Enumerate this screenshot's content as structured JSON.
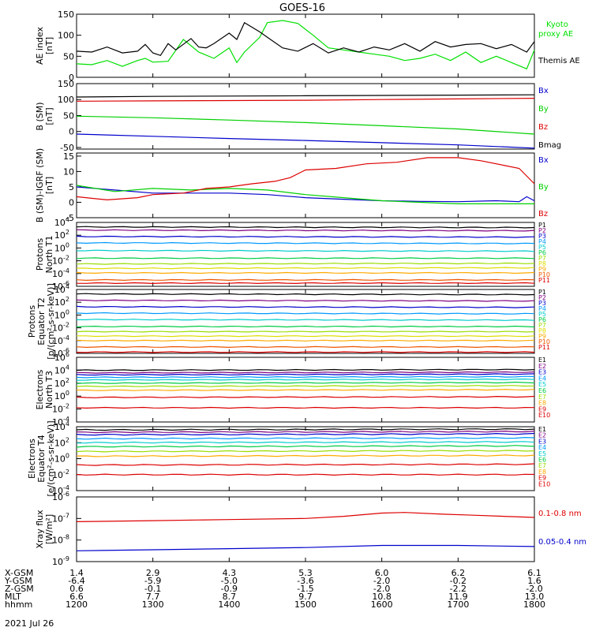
{
  "title": "GOES-16",
  "footer": {
    "row_labels": [
      "X-GSM",
      "Y-GSM",
      "Z-GSM",
      "MLT",
      "hhmm"
    ],
    "date": "2021 Jul 26",
    "columns": [
      [
        "1.4",
        "-6.4",
        "0.6",
        "6.6",
        "1200"
      ],
      [
        "2.9",
        "-5.9",
        "-0.1",
        "7.7",
        "1300"
      ],
      [
        "4.3",
        "-5.0",
        "-0.9",
        "8.7",
        "1400"
      ],
      [
        "5.3",
        "-3.6",
        "-1.5",
        "9.7",
        "1500"
      ],
      [
        "6.0",
        "-2.0",
        "-2.0",
        "10.8",
        "1600"
      ],
      [
        "6.2",
        "-0.2",
        "-2.2",
        "11.9",
        "1700"
      ],
      [
        "6.1",
        "1.6",
        "-2.0",
        "13.0",
        "1800"
      ]
    ]
  },
  "chart_data": [
    {
      "type": "line",
      "panel": "ae",
      "ylabel": [
        "AE index",
        "[nT]"
      ],
      "ylim": [
        0,
        150
      ],
      "yticks": [
        "0",
        "50",
        "100",
        "150"
      ],
      "series": [
        {
          "name": "Kyoto proxy AE",
          "color": "#00e000",
          "x": [
            12.0,
            12.2,
            12.4,
            12.6,
            12.8,
            12.9,
            13.0,
            13.2,
            13.4,
            13.6,
            13.8,
            14.0,
            14.1,
            14.2,
            14.4,
            14.5,
            14.7,
            14.9,
            15.1,
            15.3,
            15.5,
            15.7,
            15.9,
            16.1,
            16.3,
            16.5,
            16.7,
            16.9,
            17.1,
            17.3,
            17.5,
            17.7,
            17.9,
            18.0
          ],
          "y": [
            32,
            30,
            40,
            26,
            40,
            45,
            36,
            38,
            90,
            60,
            45,
            70,
            35,
            60,
            95,
            130,
            135,
            128,
            100,
            70,
            65,
            60,
            55,
            50,
            40,
            45,
            55,
            40,
            60,
            35,
            50,
            35,
            20,
            65
          ]
        },
        {
          "name": "Themis AE",
          "color": "#000000",
          "x": [
            12.0,
            12.2,
            12.4,
            12.6,
            12.8,
            12.9,
            13.0,
            13.1,
            13.2,
            13.3,
            13.5,
            13.6,
            13.7,
            13.8,
            14.0,
            14.1,
            14.2,
            14.4,
            14.5,
            14.7,
            14.9,
            15.1,
            15.3,
            15.5,
            15.7,
            15.9,
            16.1,
            16.3,
            16.5,
            16.7,
            16.9,
            17.1,
            17.3,
            17.5,
            17.7,
            17.9,
            18.0
          ],
          "y": [
            62,
            60,
            72,
            58,
            62,
            78,
            58,
            52,
            80,
            65,
            92,
            72,
            70,
            80,
            105,
            90,
            130,
            108,
            95,
            70,
            62,
            80,
            58,
            70,
            60,
            72,
            65,
            80,
            62,
            85,
            72,
            78,
            80,
            68,
            78,
            60,
            85
          ]
        }
      ]
    },
    {
      "type": "line",
      "panel": "b_sm",
      "ylabel": [
        "B (SM)",
        "[nT]"
      ],
      "ylim": [
        -55,
        150
      ],
      "yticks": [
        "-50",
        "0",
        "50",
        "100",
        "150"
      ],
      "series": [
        {
          "name": "Bx",
          "color": "#0000cc",
          "x": [
            12,
            13,
            14,
            15,
            16,
            17,
            18
          ],
          "y": [
            -8,
            -15,
            -22,
            -28,
            -35,
            -42,
            -52
          ]
        },
        {
          "name": "By",
          "color": "#00d000",
          "x": [
            12,
            13,
            14,
            15,
            16,
            17,
            18
          ],
          "y": [
            48,
            43,
            36,
            28,
            18,
            8,
            -8
          ]
        },
        {
          "name": "Bz",
          "color": "#dd0000",
          "x": [
            12,
            13,
            14,
            15,
            16,
            17,
            18
          ],
          "y": [
            95,
            96,
            97,
            98,
            100,
            102,
            104
          ]
        },
        {
          "name": "Bmag",
          "color": "#000000",
          "x": [
            12,
            13,
            14,
            15,
            16,
            17,
            18
          ],
          "y": [
            108,
            110,
            111,
            112,
            113,
            114,
            115
          ]
        }
      ]
    },
    {
      "type": "line",
      "panel": "b_minus_igrf",
      "ylabel": [
        "B (SM)-IGRF (SM)",
        "[nT]"
      ],
      "ylim": [
        -5,
        16
      ],
      "yticks": [
        "-5",
        "0",
        "5",
        "10",
        "15"
      ],
      "series": [
        {
          "name": "Bx",
          "color": "#0000cc",
          "x": [
            12.0,
            12.5,
            13.0,
            13.5,
            14.0,
            14.5,
            15.0,
            15.5,
            16.0,
            16.5,
            17.0,
            17.5,
            17.8,
            17.9,
            18.0
          ],
          "y": [
            5,
            4,
            3,
            3,
            3,
            2.5,
            1.5,
            1,
            0.5,
            0.3,
            0.2,
            0.5,
            0.2,
            1.8,
            0.5
          ]
        },
        {
          "name": "By",
          "color": "#00d000",
          "x": [
            12.0,
            12.5,
            13.0,
            13.5,
            14.0,
            14.5,
            15.0,
            15.5,
            16.0,
            16.5,
            17.0,
            17.5,
            18.0
          ],
          "y": [
            5.5,
            3.5,
            4.5,
            4,
            4.5,
            4,
            2.5,
            1.5,
            0.5,
            0,
            -0.5,
            -0.5,
            -0.5
          ]
        },
        {
          "name": "Bz",
          "color": "#dd0000",
          "x": [
            12.0,
            12.4,
            12.8,
            13.0,
            13.4,
            13.7,
            14.0,
            14.3,
            14.6,
            14.8,
            15.0,
            15.4,
            15.8,
            16.2,
            16.6,
            17.0,
            17.3,
            17.6,
            17.8,
            18.0
          ],
          "y": [
            1.8,
            0.8,
            1.5,
            2.5,
            3,
            4.5,
            5,
            6,
            6.8,
            8,
            10.5,
            11,
            12.5,
            13,
            14.5,
            14.5,
            13.5,
            12,
            11,
            6
          ]
        }
      ]
    },
    {
      "type": "line",
      "panel": "protons_t1",
      "log_scale": true,
      "ylabel": [
        "Protons",
        "North T1"
      ],
      "ylim": [
        -6,
        4
      ],
      "ytick_exponents": [
        4,
        2,
        0,
        -2,
        -4,
        -6
      ],
      "series": [
        {
          "name": "P1",
          "color": "#000000",
          "levels": [
            3.3,
            3.2
          ]
        },
        {
          "name": "P2",
          "color": "#800080",
          "levels": [
            2.8,
            2.7
          ]
        },
        {
          "name": "P3",
          "color": "#0000cc",
          "levels": [
            1.8,
            1.7
          ]
        },
        {
          "name": "P4",
          "color": "#0099ff",
          "levels": [
            0.8,
            0.7
          ]
        },
        {
          "name": "P5",
          "color": "#00cccc",
          "levels": [
            -0.4,
            -0.5
          ]
        },
        {
          "name": "P6",
          "color": "#00cc44",
          "levels": [
            -1.6,
            -1.6
          ]
        },
        {
          "name": "P7",
          "color": "#99dd00",
          "levels": [
            -2.5,
            -2.4
          ]
        },
        {
          "name": "P8",
          "color": "#dddd00",
          "levels": [
            -3.2,
            -3.1
          ]
        },
        {
          "name": "P9",
          "color": "#ffaa00",
          "levels": [
            -3.9,
            -3.9
          ]
        },
        {
          "name": "P10",
          "color": "#ee5500",
          "levels": [
            -5.0,
            -5.0
          ]
        },
        {
          "name": "P11",
          "color": "#dd0000",
          "levels": [
            -5.5,
            -5.5
          ]
        }
      ]
    },
    {
      "type": "line",
      "panel": "protons_t2",
      "log_scale": true,
      "ylabel": [
        "Protons",
        "Equator T2",
        "[p/(cm²-s-sr-keV)]"
      ],
      "ylim": [
        -6,
        4
      ],
      "ytick_exponents": [
        4,
        2,
        0,
        -2,
        -4,
        -6
      ],
      "series": [
        {
          "name": "P1",
          "color": "#000000",
          "levels": [
            3.3,
            3.2
          ]
        },
        {
          "name": "P2",
          "color": "#800080",
          "levels": [
            2.3,
            2.2
          ]
        },
        {
          "name": "P3",
          "color": "#0000cc",
          "levels": [
            1.3,
            1.2
          ]
        },
        {
          "name": "P4",
          "color": "#0099ff",
          "levels": [
            0.3,
            0.2
          ]
        },
        {
          "name": "P5",
          "color": "#00cccc",
          "levels": [
            -0.7,
            -0.8
          ]
        },
        {
          "name": "P6",
          "color": "#00cc44",
          "levels": [
            -1.8,
            -1.8
          ]
        },
        {
          "name": "P7",
          "color": "#99dd00",
          "levels": [
            -2.6,
            -2.6
          ]
        },
        {
          "name": "P8",
          "color": "#dddd00",
          "levels": [
            -3.3,
            -3.3
          ]
        },
        {
          "name": "P9",
          "color": "#ffaa00",
          "levels": [
            -4.0,
            -4.0
          ]
        },
        {
          "name": "P10",
          "color": "#ee5500",
          "levels": [
            -5.0,
            -5.0
          ]
        },
        {
          "name": "P11",
          "color": "#dd0000",
          "levels": [
            -5.8,
            -5.8
          ]
        }
      ]
    },
    {
      "type": "line",
      "panel": "electrons_t3",
      "log_scale": true,
      "ylabel": [
        "Electrons",
        "North T3"
      ],
      "ylim": [
        -4,
        6
      ],
      "ytick_exponents": [
        6,
        4,
        2,
        0,
        -2,
        -4
      ],
      "series": [
        {
          "name": "E1",
          "color": "#000000",
          "levels": [
            4.0,
            4.1
          ]
        },
        {
          "name": "E2",
          "color": "#800080",
          "levels": [
            3.6,
            3.7
          ]
        },
        {
          "name": "E3",
          "color": "#0000cc",
          "levels": [
            3.3,
            3.4
          ]
        },
        {
          "name": "E4",
          "color": "#0099ff",
          "levels": [
            2.9,
            3.0
          ]
        },
        {
          "name": "E5",
          "color": "#00cccc",
          "levels": [
            2.5,
            2.6
          ]
        },
        {
          "name": "E6",
          "color": "#00cc44",
          "levels": [
            2.0,
            2.1
          ]
        },
        {
          "name": "E7",
          "color": "#99dd00",
          "levels": [
            1.5,
            1.6
          ]
        },
        {
          "name": "E8",
          "color": "#ffaa00",
          "levels": [
            0.9,
            1.0
          ]
        },
        {
          "name": "E9",
          "color": "#dd0000",
          "levels": [
            -0.2,
            -0.1
          ]
        },
        {
          "name": "E10",
          "color": "#dd0000",
          "levels": [
            -1.8,
            -1.8
          ]
        }
      ]
    },
    {
      "type": "line",
      "panel": "electrons_t4",
      "log_scale": true,
      "ylabel": [
        "Electrons",
        "Equator T4",
        "[e/(cm²-s-sr-keV)]"
      ],
      "ylim": [
        -4,
        4
      ],
      "ytick_exponents": [
        4,
        2,
        0,
        -2,
        -4
      ],
      "series": [
        {
          "name": "E1",
          "color": "#000000",
          "levels": [
            3.6,
            3.7
          ]
        },
        {
          "name": "E2",
          "color": "#800080",
          "levels": [
            3.3,
            3.4
          ]
        },
        {
          "name": "E3",
          "color": "#0000cc",
          "levels": [
            3.0,
            3.1
          ]
        },
        {
          "name": "E4",
          "color": "#0099ff",
          "levels": [
            2.5,
            2.6
          ]
        },
        {
          "name": "E5",
          "color": "#00cccc",
          "levels": [
            2.0,
            2.1
          ]
        },
        {
          "name": "E6",
          "color": "#00cc44",
          "levels": [
            1.5,
            1.6
          ]
        },
        {
          "name": "E7",
          "color": "#99dd00",
          "levels": [
            0.9,
            1.0
          ]
        },
        {
          "name": "E8",
          "color": "#ffaa00",
          "levels": [
            0.3,
            0.4
          ]
        },
        {
          "name": "E9",
          "color": "#dd0000",
          "levels": [
            -0.8,
            -0.7
          ]
        },
        {
          "name": "E10",
          "color": "#dd0000",
          "levels": [
            -2.0,
            -2.0
          ]
        }
      ]
    },
    {
      "type": "line",
      "panel": "xray",
      "log_scale": true,
      "ylabel": [
        "Xray flux",
        "[W/m²]"
      ],
      "ylim": [
        -9,
        -6
      ],
      "ytick_exponents": [
        -6,
        -7,
        -8,
        -9
      ],
      "series": [
        {
          "name": "0.1-0.8 nm",
          "color": "#dd0000",
          "x": [
            12.0,
            13.0,
            14.0,
            15.0,
            15.5,
            16.0,
            16.3,
            16.8,
            17.2,
            17.6,
            18.0
          ],
          "y": [
            -7.15,
            -7.1,
            -7.05,
            -7.0,
            -6.9,
            -6.75,
            -6.72,
            -6.8,
            -6.85,
            -6.9,
            -6.95
          ]
        },
        {
          "name": "0.05-0.4 nm",
          "color": "#0000cc",
          "x": [
            12.0,
            13.0,
            14.0,
            15.0,
            16.0,
            17.0,
            18.0
          ],
          "y": [
            -8.5,
            -8.45,
            -8.4,
            -8.35,
            -8.25,
            -8.25,
            -8.3
          ]
        }
      ]
    }
  ]
}
